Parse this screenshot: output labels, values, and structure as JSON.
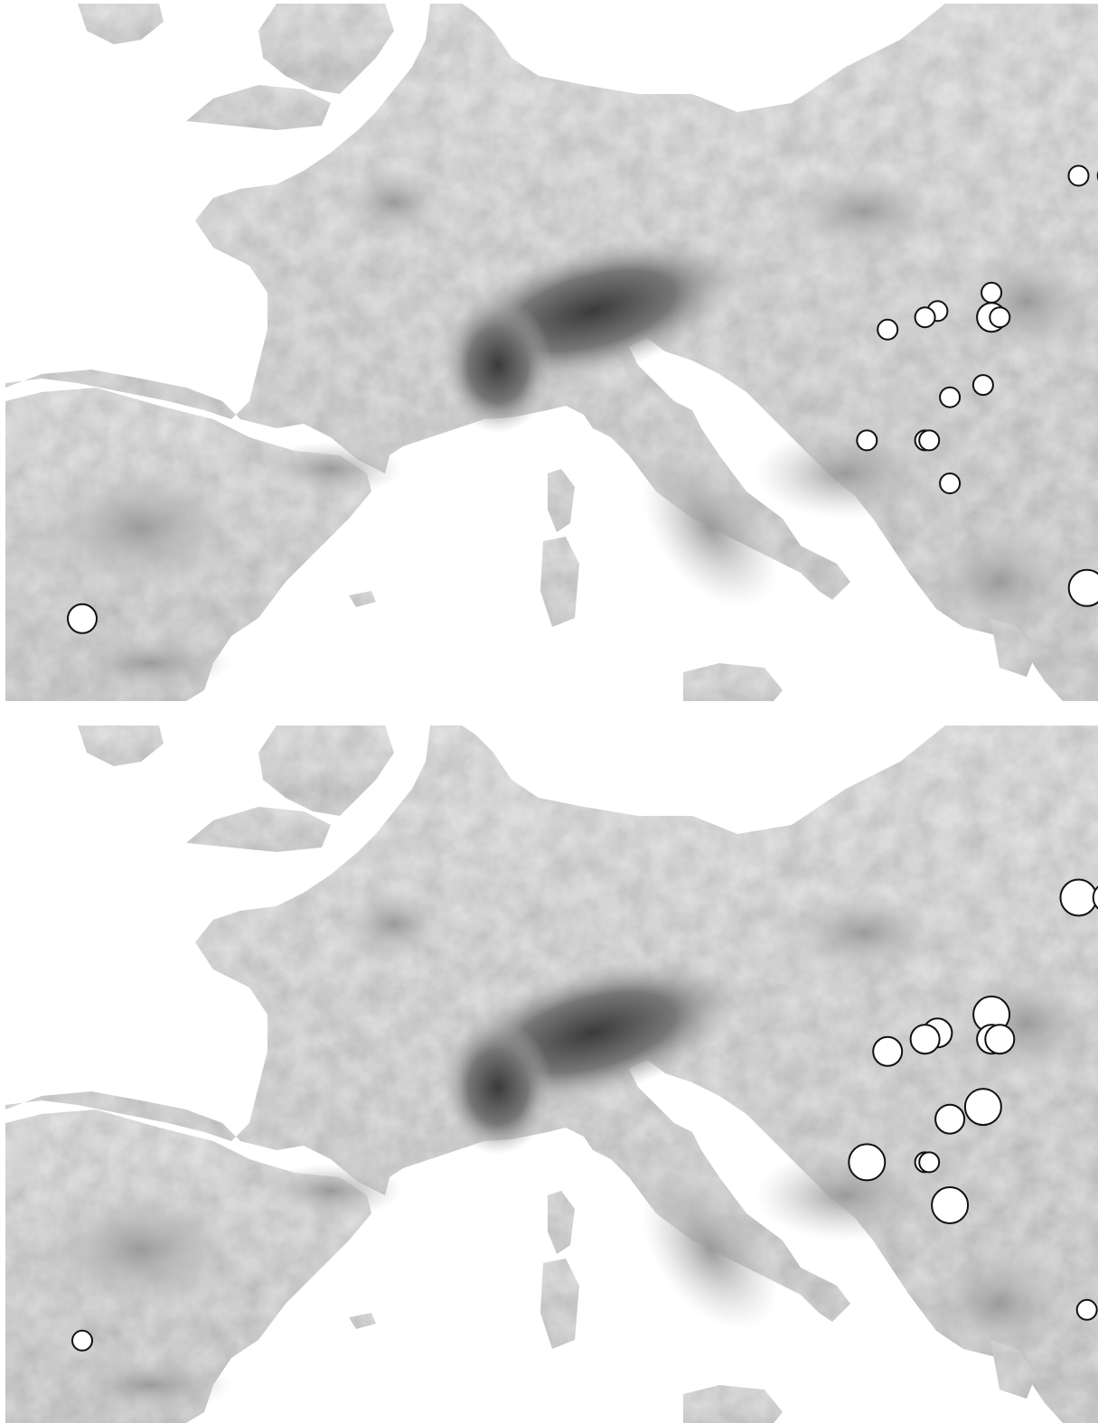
{
  "figure": {
    "panels": [
      {
        "id": "top",
        "sites": [
          {
            "lat": 51.8,
            "lon": 20.3,
            "magnitude": "small"
          },
          {
            "lat": 50.9,
            "lon": 20.1,
            "magnitude": "medium"
          },
          {
            "lat": 50.5,
            "lon": 18.2,
            "magnitude": "small"
          },
          {
            "lat": 50.5,
            "lon": 18.9,
            "magnitude": "small"
          },
          {
            "lat": 50.4,
            "lon": 19.4,
            "magnitude": "small"
          },
          {
            "lat": 50.3,
            "lon": 19.6,
            "magnitude": "small"
          },
          {
            "lat": 50.0,
            "lon": 21.0,
            "magnitude": "small"
          },
          {
            "lat": 49.4,
            "lon": 21.1,
            "magnitude": "small"
          },
          {
            "lat": 48.6,
            "lon": 16.1,
            "magnitude": "small"
          },
          {
            "lat": 48.2,
            "lon": 16.1,
            "magnitude": "medium"
          },
          {
            "lat": 48.2,
            "lon": 16.3,
            "magnitude": "small"
          },
          {
            "lat": 48.3,
            "lon": 14.8,
            "magnitude": "small"
          },
          {
            "lat": 48.2,
            "lon": 14.5,
            "magnitude": "small"
          },
          {
            "lat": 48.0,
            "lon": 13.6,
            "magnitude": "small"
          },
          {
            "lat": 47.1,
            "lon": 15.9,
            "magnitude": "small"
          },
          {
            "lat": 46.9,
            "lon": 15.1,
            "magnitude": "small"
          },
          {
            "lat": 46.2,
            "lon": 14.5,
            "magnitude": "small"
          },
          {
            "lat": 46.2,
            "lon": 14.6,
            "magnitude": "small"
          },
          {
            "lat": 46.2,
            "lon": 13.1,
            "magnitude": "small"
          },
          {
            "lat": 45.5,
            "lon": 15.1,
            "magnitude": "small"
          },
          {
            "lat": 43.8,
            "lon": 18.4,
            "magnitude": "large"
          },
          {
            "lat": 43.3,
            "lon": -5.8,
            "magnitude": "medium"
          }
        ]
      },
      {
        "id": "bottom",
        "sites": [
          {
            "lat": 51.8,
            "lon": 20.3,
            "magnitude": "large"
          },
          {
            "lat": 50.9,
            "lon": 20.1,
            "magnitude": "large"
          },
          {
            "lat": 50.5,
            "lon": 18.2,
            "magnitude": "large"
          },
          {
            "lat": 50.5,
            "lon": 18.9,
            "magnitude": "medium"
          },
          {
            "lat": 50.4,
            "lon": 19.4,
            "magnitude": "large"
          },
          {
            "lat": 50.3,
            "lon": 19.6,
            "magnitude": "large"
          },
          {
            "lat": 50.0,
            "lon": 21.0,
            "magnitude": "large"
          },
          {
            "lat": 49.4,
            "lon": 21.1,
            "magnitude": "large"
          },
          {
            "lat": 48.6,
            "lon": 16.1,
            "magnitude": "large"
          },
          {
            "lat": 48.2,
            "lon": 16.1,
            "magnitude": "medium"
          },
          {
            "lat": 48.2,
            "lon": 16.3,
            "magnitude": "medium"
          },
          {
            "lat": 48.3,
            "lon": 14.8,
            "magnitude": "medium"
          },
          {
            "lat": 48.2,
            "lon": 14.5,
            "magnitude": "medium"
          },
          {
            "lat": 48.0,
            "lon": 13.6,
            "magnitude": "medium"
          },
          {
            "lat": 47.1,
            "lon": 15.9,
            "magnitude": "large"
          },
          {
            "lat": 46.9,
            "lon": 15.1,
            "magnitude": "medium"
          },
          {
            "lat": 46.2,
            "lon": 14.5,
            "magnitude": "small"
          },
          {
            "lat": 46.2,
            "lon": 14.6,
            "magnitude": "small"
          },
          {
            "lat": 46.2,
            "lon": 13.1,
            "magnitude": "large"
          },
          {
            "lat": 45.5,
            "lon": 15.1,
            "magnitude": "large"
          },
          {
            "lat": 43.8,
            "lon": 18.4,
            "magnitude": "small"
          },
          {
            "lat": 43.3,
            "lon": -5.8,
            "magnitude": "small"
          }
        ]
      }
    ]
  }
}
